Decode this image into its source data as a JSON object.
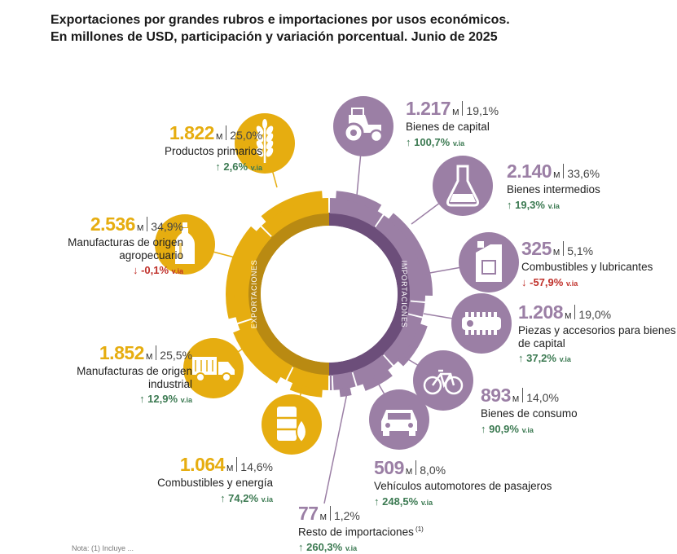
{
  "title_line1": "Exportaciones por grandes rubros e importaciones por usos económicos.",
  "title_line2": "En millones de USD, participación y variación porcentual. Junio de 2025",
  "colors": {
    "exportaciones": "#e6ad10",
    "importaciones": "#9b7fa5",
    "inner_dark_exp": "#b98a12",
    "inner_dark_imp": "#6c4e7a",
    "positive": "#3c7a52",
    "negative": "#c0312b"
  },
  "ring_labels": {
    "exportaciones": "EXPORTACIONES",
    "importaciones": "IMPORTACIONES"
  },
  "chart_data": {
    "type": "pie",
    "unit": "M",
    "variation_suffix": "v.ia",
    "series": [
      {
        "name": "Exportaciones",
        "slices": [
          {
            "label": "Productos primarios",
            "value": 1822,
            "value_text": "1.822",
            "share": "25,0%",
            "variation": 2.6,
            "variation_text": "2,6%",
            "icon": "wheat-icon"
          },
          {
            "label": "Manufacturas de origen agropecuario",
            "value": 2536,
            "value_text": "2.536",
            "share": "34,9%",
            "variation": -0.1,
            "variation_text": "-0,1%",
            "icon": "bottle-icon"
          },
          {
            "label": "Manufacturas de origen industrial",
            "value": 1852,
            "value_text": "1.852",
            "share": "25,5%",
            "variation": 12.9,
            "variation_text": "12,9%",
            "icon": "truck-icon"
          },
          {
            "label": "Combustibles y energía",
            "value": 1064,
            "value_text": "1.064",
            "share": "14,6%",
            "variation": 74.2,
            "variation_text": "74,2%",
            "icon": "fuel-barrel-icon"
          }
        ]
      },
      {
        "name": "Importaciones",
        "slices": [
          {
            "label": "Bienes de capital",
            "value": 1217,
            "value_text": "1.217",
            "share": "19,1%",
            "variation": 100.7,
            "variation_text": "100,7%",
            "icon": "tractor-icon"
          },
          {
            "label": "Bienes intermedios",
            "value": 2140,
            "value_text": "2.140",
            "share": "33,6%",
            "variation": 19.3,
            "variation_text": "19,3%",
            "icon": "flask-icon"
          },
          {
            "label": "Combustibles y lubricantes",
            "value": 325,
            "value_text": "325",
            "share": "5,1%",
            "variation": -57.9,
            "variation_text": "-57,9%",
            "icon": "jerrycan-icon"
          },
          {
            "label": "Piezas y accesorios para bienes de capital",
            "value": 1208,
            "value_text": "1.208",
            "share": "19,0%",
            "variation": 37.2,
            "variation_text": "37,2%",
            "icon": "gear-part-icon"
          },
          {
            "label": "Bienes de consumo",
            "value": 893,
            "value_text": "893",
            "share": "14,0%",
            "variation": 90.9,
            "variation_text": "90,9%",
            "icon": "bicycle-icon"
          },
          {
            "label": "Vehículos automotores de pasajeros",
            "value": 509,
            "value_text": "509",
            "share": "8,0%",
            "variation": 248.5,
            "variation_text": "248,5%",
            "icon": "car-icon"
          },
          {
            "label": "Resto de importaciones",
            "value": 77,
            "value_text": "77",
            "share": "1,2%",
            "variation": 260.3,
            "variation_text": "260,3%",
            "icon": "",
            "note": "(1)"
          }
        ]
      }
    ]
  },
  "footnote": "Nota: (1) Incluye ..."
}
